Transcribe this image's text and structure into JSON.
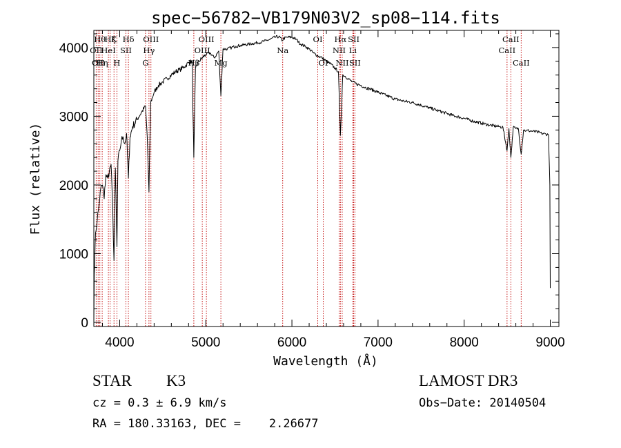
{
  "chart_data": {
    "type": "line",
    "title": "spec−56782−VB179N03V2_sp08−114.fits",
    "xlabel": "Wavelength (Å)",
    "ylabel": "Flux (relative)",
    "xlim": [
      3700,
      9100
    ],
    "ylim": [
      -60,
      4250
    ],
    "x_ticks": [
      4000,
      5000,
      6000,
      7000,
      8000,
      9000
    ],
    "y_ticks": [
      0,
      1000,
      2000,
      3000,
      4000
    ],
    "grid": false,
    "series": [
      {
        "name": "flux",
        "x": [
          3700,
          3705,
          3720,
          3740,
          3760,
          3780,
          3800,
          3820,
          3840,
          3860,
          3880,
          3900,
          3920,
          3934,
          3950,
          3968,
          3980,
          4000,
          4020,
          4040,
          4060,
          4080,
          4101,
          4120,
          4150,
          4200,
          4250,
          4300,
          4320,
          4340,
          4360,
          4400,
          4450,
          4500,
          4550,
          4600,
          4650,
          4700,
          4750,
          4800,
          4840,
          4861,
          4880,
          4920,
          4960,
          5000,
          5050,
          5100,
          5150,
          5175,
          5200,
          5250,
          5300,
          5350,
          5400,
          5450,
          5500,
          5550,
          5600,
          5650,
          5700,
          5750,
          5800,
          5850,
          5890,
          5900,
          5950,
          6000,
          6050,
          6100,
          6150,
          6200,
          6250,
          6300,
          6350,
          6400,
          6450,
          6500,
          6540,
          6563,
          6590,
          6620,
          6650,
          6700,
          6750,
          6800,
          6850,
          6900,
          7000,
          7100,
          7200,
          7300,
          7400,
          7500,
          7600,
          7700,
          7800,
          7900,
          8000,
          8100,
          8200,
          8300,
          8400,
          8450,
          8498,
          8520,
          8542,
          8570,
          8600,
          8630,
          8662,
          8690,
          8720,
          8750,
          8800,
          8850,
          8900,
          8950,
          8980,
          8995,
          9000
        ],
        "y": [
          0,
          700,
          1300,
          1500,
          1700,
          1950,
          2000,
          1800,
          2150,
          2100,
          2200,
          2300,
          1600,
          900,
          2250,
          1100,
          2350,
          2500,
          2650,
          2700,
          2600,
          2750,
          2100,
          2700,
          2850,
          2950,
          3050,
          3150,
          2700,
          1900,
          3200,
          3350,
          3450,
          3500,
          3550,
          3600,
          3650,
          3680,
          3720,
          3780,
          3800,
          2400,
          3700,
          3800,
          3850,
          3900,
          3920,
          3850,
          3950,
          3300,
          3980,
          3980,
          4000,
          4020,
          4030,
          4040,
          4050,
          4060,
          4070,
          4080,
          4100,
          4120,
          4150,
          4160,
          4100,
          4130,
          4150,
          4150,
          4120,
          4050,
          4020,
          3980,
          3920,
          3880,
          3850,
          3800,
          3760,
          3700,
          3650,
          2720,
          3600,
          3580,
          3550,
          3500,
          3470,
          3450,
          3420,
          3400,
          3350,
          3300,
          3250,
          3220,
          3200,
          3160,
          3120,
          3080,
          3040,
          3000,
          2970,
          2930,
          2900,
          2870,
          2850,
          2840,
          2500,
          2820,
          2400,
          2840,
          2820,
          2820,
          2450,
          2800,
          2790,
          2790,
          2780,
          2770,
          2750,
          2740,
          2730,
          2000,
          500
        ]
      }
    ],
    "lines": [
      {
        "wave": 3727,
        "name": "OII",
        "tier": 2
      },
      {
        "wave": 3750,
        "name": "OII",
        "tier": 3
      },
      {
        "wave": 3770,
        "name": "Hθ",
        "tier": 1
      },
      {
        "wave": 3797,
        "name": "Hη",
        "tier": 3
      },
      {
        "wave": 3869,
        "name": "HeI",
        "tier": 2
      },
      {
        "wave": 3889,
        "name": "Hζ",
        "tier": 1
      },
      {
        "wave": 3934,
        "name": "K",
        "tier": 1
      },
      {
        "wave": 3968,
        "name": "H",
        "tier": 3
      },
      {
        "wave": 4072,
        "name": "SII",
        "tier": 2
      },
      {
        "wave": 4101,
        "name": "Hδ",
        "tier": 1
      },
      {
        "wave": 4300,
        "name": "G",
        "tier": 3
      },
      {
        "wave": 4340,
        "name": "Hγ",
        "tier": 2
      },
      {
        "wave": 4363,
        "name": "OIII",
        "tier": 1
      },
      {
        "wave": 4861,
        "name": "Hβ",
        "tier": 3
      },
      {
        "wave": 4959,
        "name": "OIII",
        "tier": 2
      },
      {
        "wave": 5007,
        "name": "OIII",
        "tier": 1
      },
      {
        "wave": 5175,
        "name": "Mg",
        "tier": 3
      },
      {
        "wave": 5893,
        "name": "Na",
        "tier": 2
      },
      {
        "wave": 6300,
        "name": "OI",
        "tier": 1
      },
      {
        "wave": 6364,
        "name": "OI",
        "tier": 3
      },
      {
        "wave": 6548,
        "name": "NII",
        "tier": 2
      },
      {
        "wave": 6563,
        "name": "Hα",
        "tier": 1
      },
      {
        "wave": 6584,
        "name": "NII",
        "tier": 3
      },
      {
        "wave": 6707,
        "name": "Li",
        "tier": 2
      },
      {
        "wave": 6717,
        "name": "SII",
        "tier": 1
      },
      {
        "wave": 6731,
        "name": "SII",
        "tier": 3
      },
      {
        "wave": 8498,
        "name": "CaII",
        "tier": 2
      },
      {
        "wave": 8542,
        "name": "CaII",
        "tier": 1
      },
      {
        "wave": 8662,
        "name": "CaII",
        "tier": 3
      }
    ]
  },
  "footer": {
    "object_class": "STAR",
    "subclass": "K3",
    "survey": "LAMOST DR3",
    "redshift": "cz = 0.3 ± 6.9 km/s",
    "obs_date": "Obs−Date: 20140504",
    "coords": "RA = 180.33163, DEC =    2.26677"
  },
  "colors": {
    "spectrum": "#000000",
    "line_marker": "#c00000",
    "background": "#ffffff"
  }
}
